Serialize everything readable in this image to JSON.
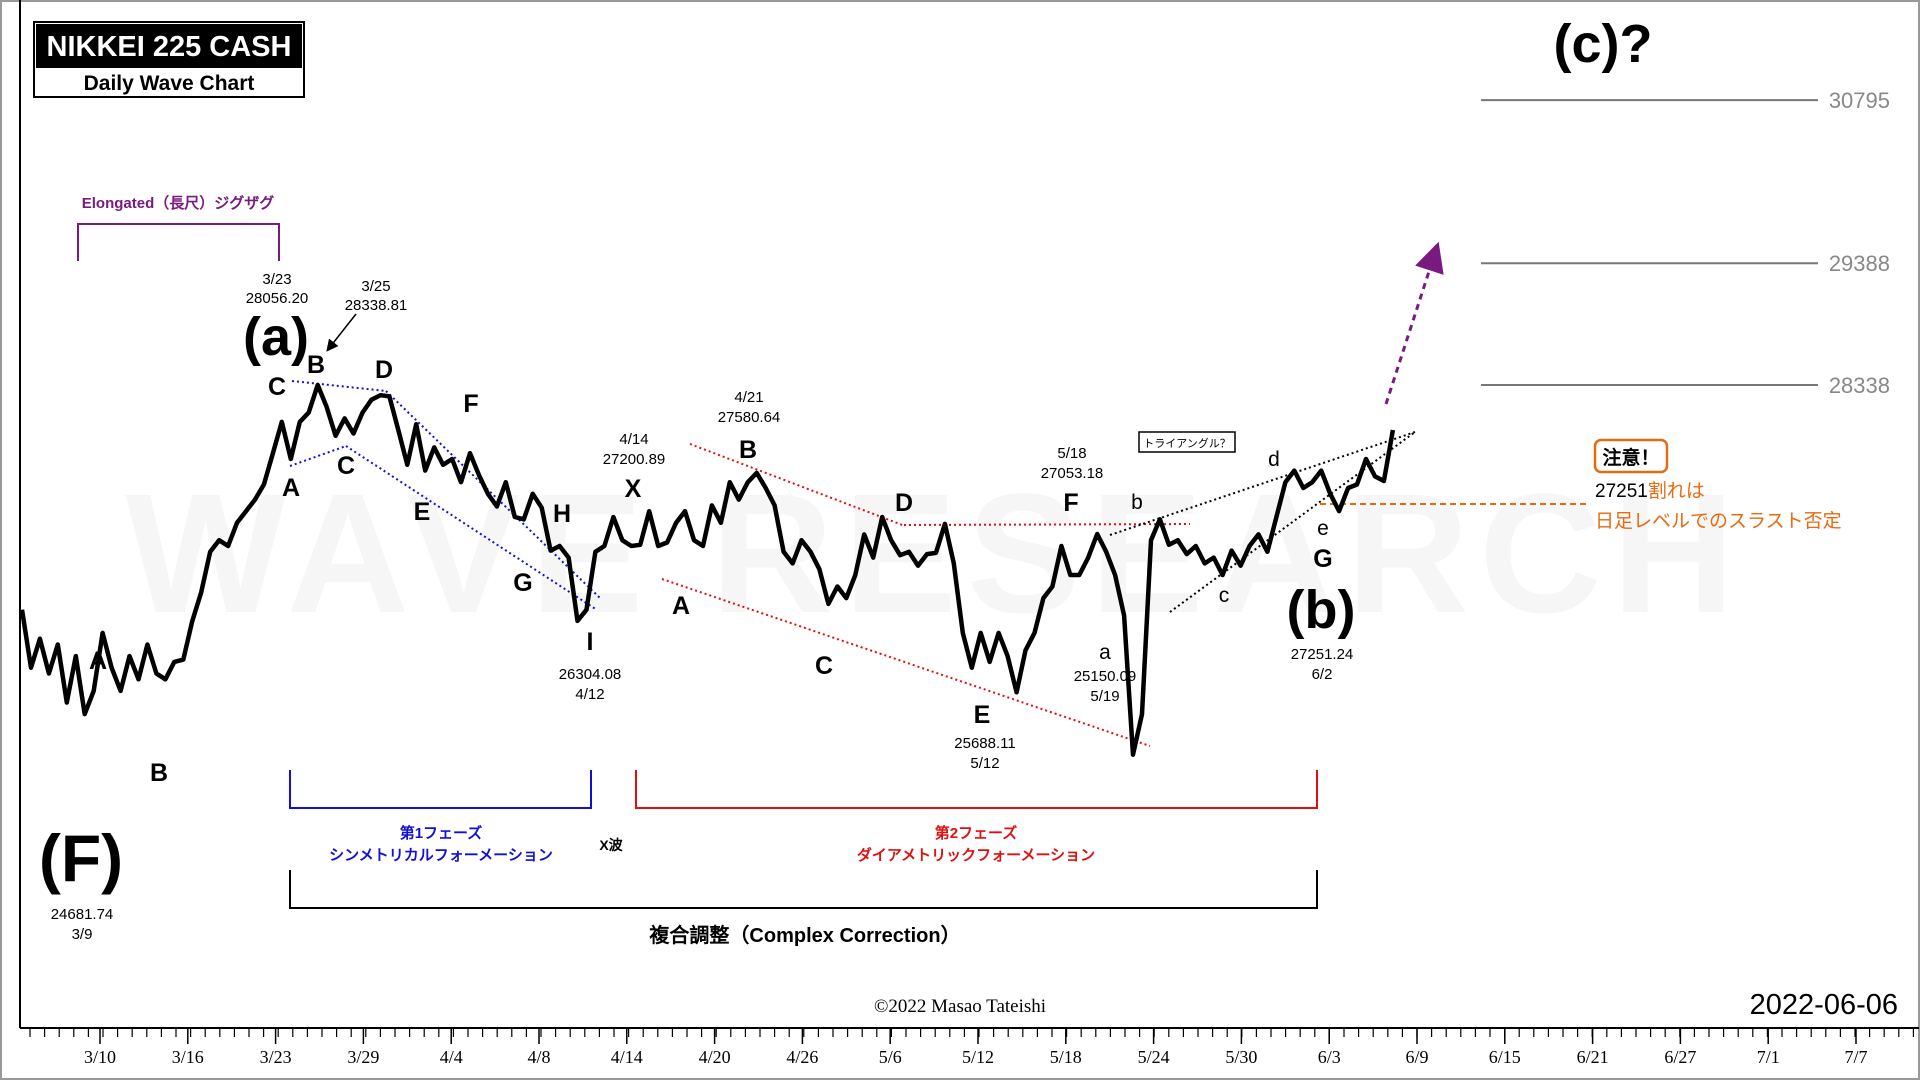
{
  "header": {
    "title": "NIKKEI 225 CASH",
    "subtitle": "Daily Wave Chart",
    "target_label": "(c)?",
    "date": "2022-06-06",
    "copyright": "©2022 Masao Tateishi",
    "watermark": "WAVE RESEARCH"
  },
  "colors": {
    "price_line": "#000000",
    "blue": "#1010d8",
    "red": "#e01010",
    "purple": "#7a1a80",
    "orange": "#e86a10",
    "level_line": "#777777"
  },
  "chart_data": {
    "type": "line",
    "title": "NIKKEI 225 CASH",
    "subtitle": "Daily Wave Chart",
    "x_tick_labels": [
      "3/10",
      "3/16",
      "3/23",
      "3/29",
      "4/4",
      "4/8",
      "4/14",
      "4/20",
      "4/26",
      "5/6",
      "5/12",
      "5/18",
      "5/24",
      "5/30",
      "6/3",
      "6/9",
      "6/15",
      "6/21",
      "6/27",
      "7/1",
      "7/7"
    ],
    "series": [
      {
        "values": [
          26400,
          25900,
          26150,
          25850,
          26100,
          25600,
          26000,
          25500,
          25700,
          26200,
          25900,
          25700,
          26000,
          25800,
          26100,
          25850,
          25800,
          25950,
          25970,
          26300,
          26550,
          26900,
          27000,
          26950,
          27150,
          27250,
          27350,
          27480,
          27750,
          28020,
          27700,
          28020,
          28100,
          28338,
          28150,
          27900,
          28050,
          27920,
          28100,
          28210,
          28250,
          28240,
          27950,
          27650,
          28000,
          27600,
          27800,
          27650,
          27700,
          27500,
          27750,
          27560,
          27400,
          27290,
          27500,
          27200,
          27180,
          27400,
          27280,
          26910,
          26950,
          26850,
          26304,
          26400,
          26900,
          26950,
          27200,
          27000,
          26950,
          26960,
          27250,
          26950,
          26980,
          27150,
          27250,
          27000,
          26950,
          27300,
          27150,
          27500,
          27350,
          27500,
          27580,
          27450,
          27300,
          26900,
          26800,
          27000,
          26900,
          26750,
          26450,
          26600,
          26500,
          26700,
          27050,
          26850,
          27200,
          27000,
          26870,
          26900,
          26780,
          26880,
          26890,
          27140,
          26800,
          26200,
          25900,
          26200,
          25950,
          26200,
          26000,
          25688,
          26050,
          26200,
          26500,
          26600,
          26950,
          26700,
          26700,
          26850,
          27053,
          26900,
          26700,
          26350,
          25150,
          25500,
          27000,
          27180,
          26960,
          27000,
          26880,
          26950,
          26800,
          26850,
          26700,
          26910,
          26780,
          26950,
          27050,
          26900,
          27200,
          27500,
          27600,
          27450,
          27500,
          27600,
          27400,
          27251,
          27450,
          27480,
          27700,
          27550,
          27510,
          27950
        ]
      }
    ],
    "ylim": [
      24600,
      31300
    ],
    "levels": [
      30795,
      29388,
      28338
    ],
    "markers": [
      {
        "label": "(F)",
        "price": "24681.74",
        "date": "3/9"
      },
      {
        "label": "(a)",
        "price": "28056.20",
        "date": "3/23"
      },
      {
        "label": "",
        "price": "28338.81",
        "date": "3/25"
      },
      {
        "label": "I",
        "price": "26304.08",
        "date": "4/12"
      },
      {
        "label": "X",
        "price": "27200.89",
        "date": "4/14"
      },
      {
        "label": "B",
        "price": "27580.64",
        "date": "4/21"
      },
      {
        "label": "E",
        "price": "25688.11",
        "date": "5/12"
      },
      {
        "label": "F",
        "price": "27053.18",
        "date": "5/18"
      },
      {
        "label": "a",
        "price": "25150.09",
        "date": "5/19"
      },
      {
        "label": "(b)",
        "price": "27251.24",
        "date": "6/2"
      }
    ]
  },
  "wave_labels": {
    "F_A": "A",
    "F_B": "B",
    "a_A": "A",
    "a_B": "B",
    "a_C": "C",
    "p1_C": "C",
    "p1_D": "D",
    "p1_E": "E",
    "p1_F": "F",
    "p1_G": "G",
    "p1_H": "H",
    "p1_I": "I",
    "x_X": "X",
    "p2_A": "A",
    "p2_B": "B",
    "p2_C": "C",
    "p2_D": "D",
    "p2_E": "E",
    "p2_F": "F",
    "p2_G": "G",
    "t_a": "a",
    "t_b": "b",
    "t_c": "c",
    "t_d": "d",
    "t_e": "e"
  },
  "annotations": {
    "elongated": "Elongated（長尺）ジグザグ",
    "phase1_title": "第1フェーズ",
    "phase1_sub": "シンメトリカルフォーメーション",
    "xwave": "X波",
    "phase2_title": "第2フェーズ",
    "phase2_sub": "ダイアメトリックフォーメーション",
    "complex": "複合調整（Complex Correction）",
    "triangle": "トライアングル？",
    "warning": "注意！",
    "warning_line1_num": "27251",
    "warning_line1_text": "割れは",
    "warning_line2": "日足レベルでのスラスト否定"
  }
}
